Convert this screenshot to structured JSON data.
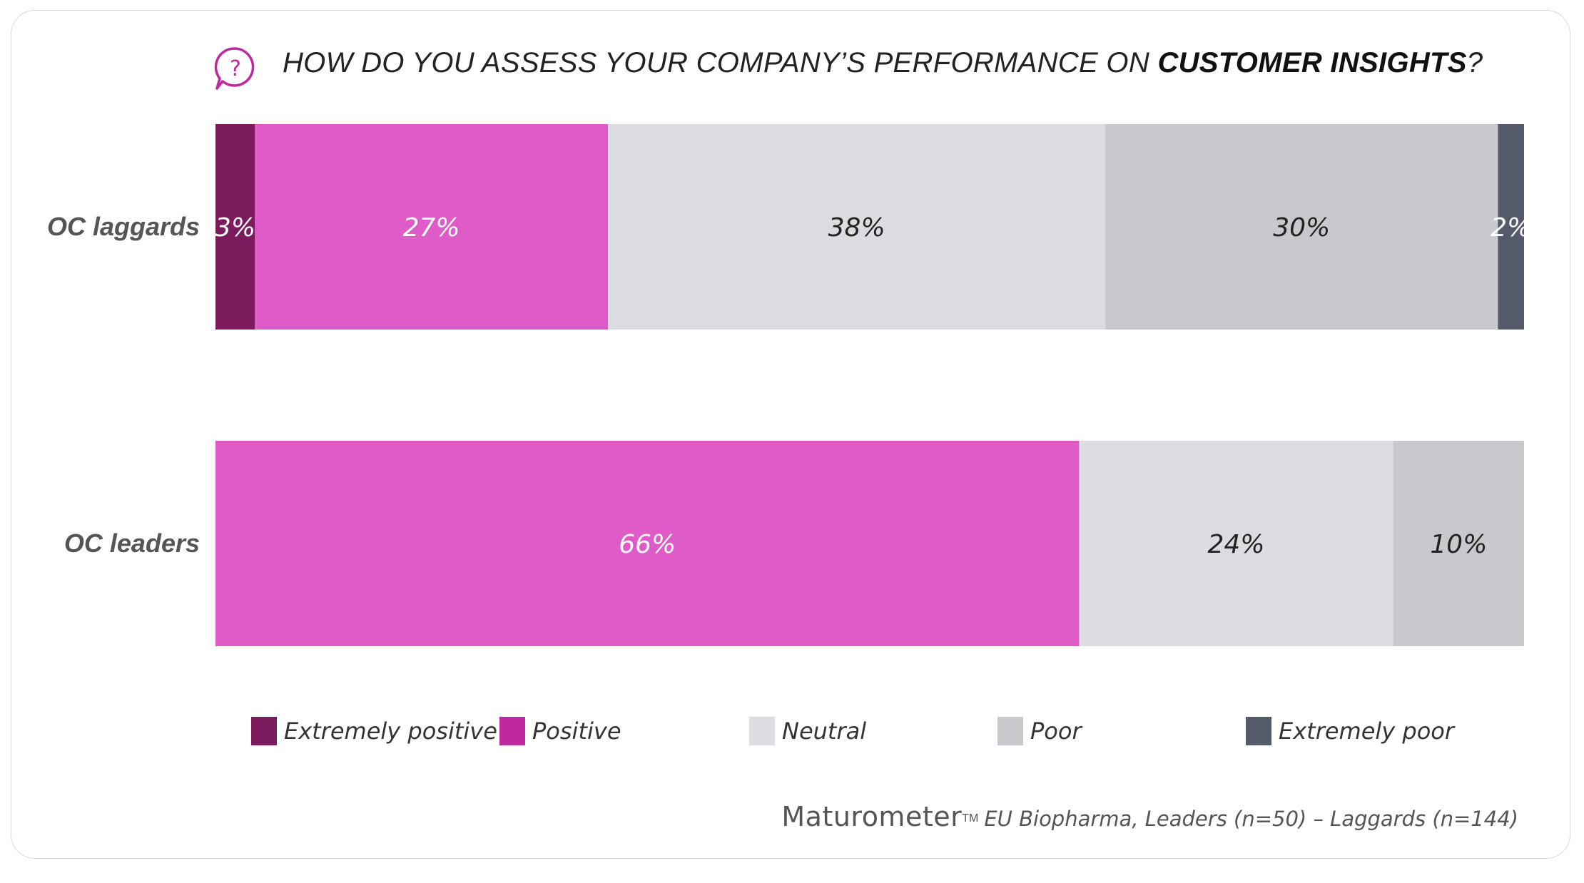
{
  "title_prefix": "HOW DO YOU ASSESS YOUR COMPANY’S PERFORMANCE ON ",
  "title_bold": "CUSTOMER INSIGHTS",
  "title_suffix": "?",
  "icon": "question-bubble-icon",
  "colors": {
    "extremely_positive": "#7b1b5e",
    "positive": "#df5cc8",
    "neutral": "#dcdde1",
    "poor": "#c8c9cd",
    "extremely_poor": "#545a69",
    "legend_positive": "#c0289e",
    "icon": "#c0289e"
  },
  "chart_data": {
    "type": "bar",
    "orientation": "horizontal",
    "stacked": true,
    "categories": [
      "OC laggards",
      "OC leaders"
    ],
    "series": [
      {
        "name": "Extremely positive",
        "values": [
          3,
          0
        ],
        "labels": [
          "3%",
          ""
        ]
      },
      {
        "name": "Positive",
        "values": [
          27,
          66
        ],
        "labels": [
          "27%",
          "66%"
        ]
      },
      {
        "name": "Neutral",
        "values": [
          38,
          24
        ],
        "labels": [
          "38%",
          "24%"
        ]
      },
      {
        "name": "Poor",
        "values": [
          30,
          10
        ],
        "labels": [
          "30%",
          "10%"
        ]
      },
      {
        "name": "Extremely poor",
        "values": [
          2,
          0
        ],
        "labels": [
          "2%",
          ""
        ]
      }
    ],
    "xlim": [
      0,
      100
    ],
    "legend_position": "bottom"
  },
  "legend": [
    {
      "label": "Extremely positive",
      "color_key": "extremely_positive"
    },
    {
      "label": "Positive",
      "color_key": "legend_positive"
    },
    {
      "label": "Neutral",
      "color_key": "neutral"
    },
    {
      "label": "Poor",
      "color_key": "poor"
    },
    {
      "label": "Extremely poor",
      "color_key": "extremely_poor"
    }
  ],
  "footer": {
    "brand": "Maturometer",
    "trademark": "TM",
    "note": "EU Biopharma, Leaders (n=50) – Laggards (n=144)"
  }
}
